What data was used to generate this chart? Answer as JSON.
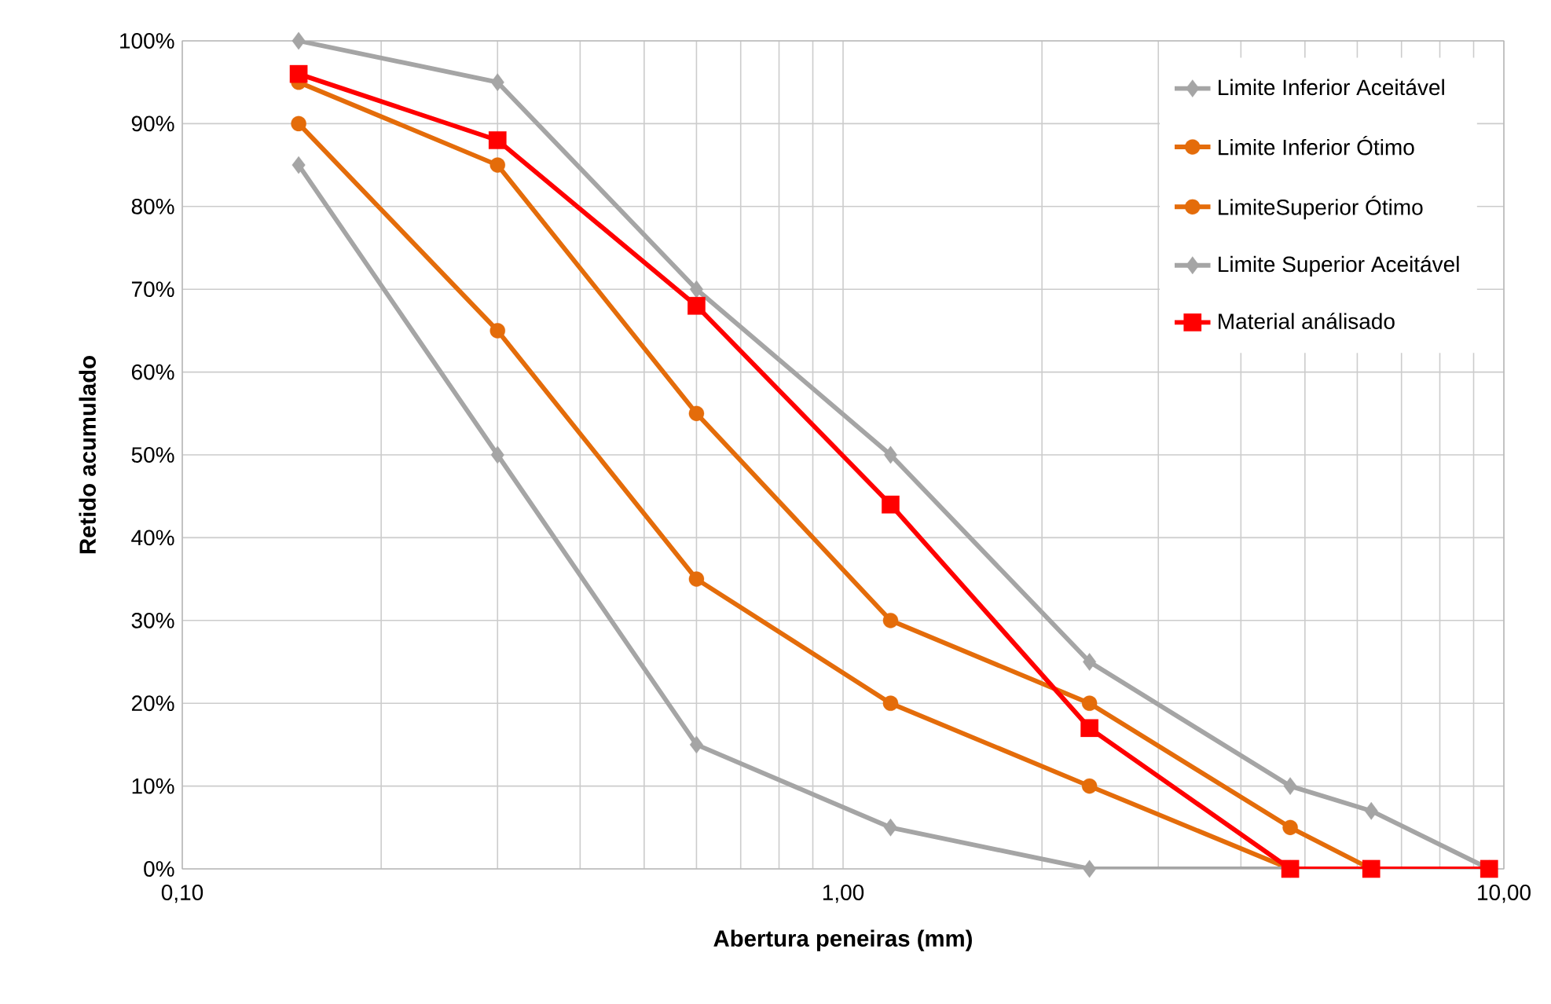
{
  "chart_data": {
    "type": "line",
    "xlabel": "**Abertura peneiras (mm)**",
    "ylabel": "**Retido acumulado**",
    "x": [
      0.15,
      0.3,
      0.6,
      1.18,
      2.36,
      4.75,
      6.3,
      9.5
    ],
    "series": [
      {
        "name": "Limite Inferior Aceitável",
        "color": "#a5a5a5",
        "marker": "diamond",
        "values": [
          100,
          95,
          70,
          50,
          25,
          10,
          7,
          0
        ]
      },
      {
        "name": "Limite Inferior Ótimo",
        "color": "#e46c0a",
        "marker": "circle",
        "values": [
          95,
          85,
          55,
          30,
          20,
          5,
          0,
          null
        ]
      },
      {
        "name": "LimiteSuperior Ótimo",
        "color": "#e46c0a",
        "marker": "circle",
        "values": [
          90,
          65,
          35,
          20,
          10,
          0,
          null,
          null
        ]
      },
      {
        "name": "Limite Superior Aceitável",
        "color": "#a5a5a5",
        "marker": "diamond",
        "values": [
          85,
          50,
          15,
          5,
          0,
          0,
          null,
          null
        ]
      },
      {
        "name": "Material análisado",
        "color": "#ff0000",
        "marker": "square",
        "values": [
          96,
          88,
          68,
          44,
          17,
          0,
          0,
          0
        ]
      }
    ],
    "log": "x",
    "xlim": [
      0.1,
      10
    ],
    "xticks": [
      {
        "value": 0.1,
        "label": "0,10"
      },
      {
        "value": 1,
        "label": "1,00"
      },
      {
        "value": 10,
        "label": "10,00"
      }
    ],
    "ylim": [
      0,
      100
    ],
    "yticks": [
      {
        "value": 0,
        "label": "0%"
      },
      {
        "value": 10,
        "label": "10%"
      },
      {
        "value": 20,
        "label": "20%"
      },
      {
        "value": 30,
        "label": "30%"
      },
      {
        "value": 40,
        "label": "40%"
      },
      {
        "value": 50,
        "label": "50%"
      },
      {
        "value": 60,
        "label": "60%"
      },
      {
        "value": 70,
        "label": "70%"
      },
      {
        "value": 80,
        "label": "80%"
      },
      {
        "value": 90,
        "label": "90%"
      },
      {
        "value": 100,
        "label": "100%"
      }
    ],
    "grid": true,
    "legend": "top right",
    "line_style": "solid"
  }
}
